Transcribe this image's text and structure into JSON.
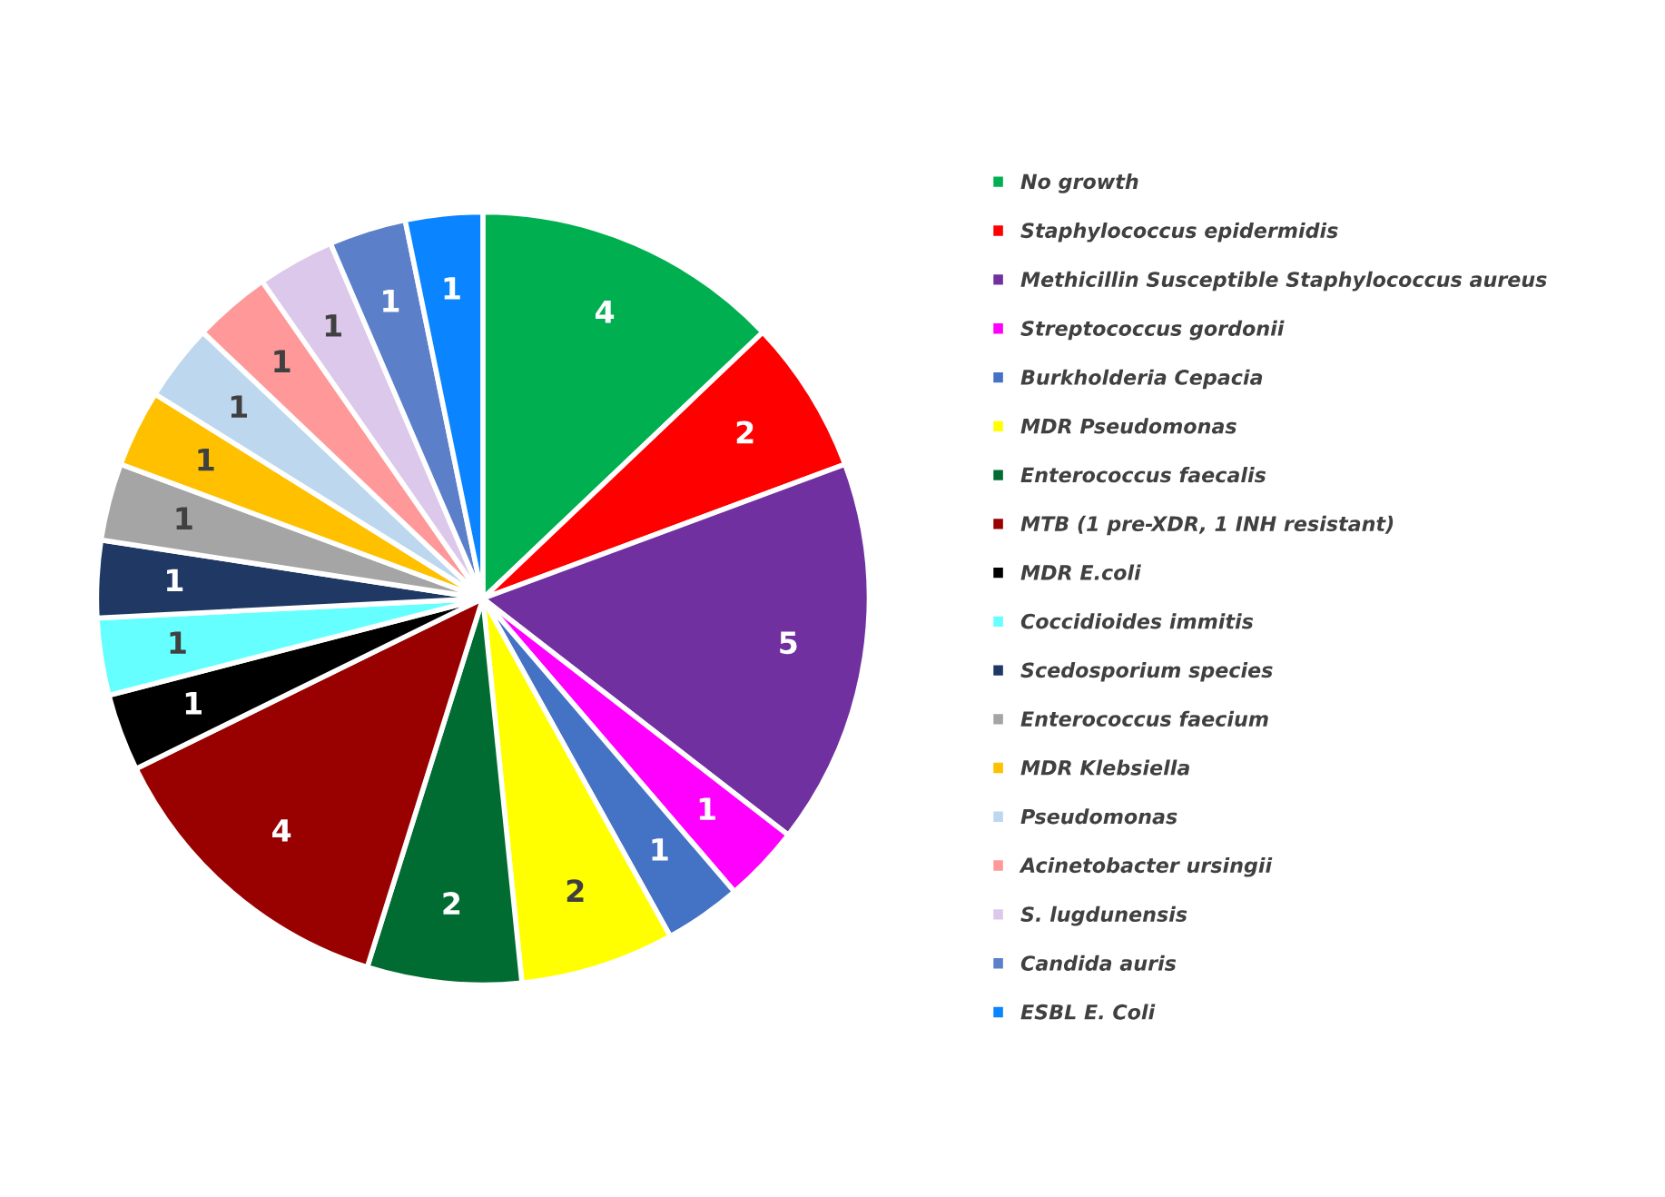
{
  "chart_data": {
    "type": "pie",
    "categories": [
      "No growth",
      "Staphylococcus epidermidis",
      "Methicillin Susceptible Staphylococcus aureus",
      "Streptococcus gordonii",
      "Burkholderia Cepacia",
      "MDR Pseudomonas",
      "Enterococcus faecalis",
      "MTB (1 pre-XDR, 1 INH resistant)",
      "MDR E.coli",
      "Coccidioides immitis",
      "Scedosporium species",
      "Enterococcus faecium",
      "MDR Klebsiella",
      "Pseudomonas",
      "Acinetobacter ursingii",
      "S. lugdunensis",
      "Candida auris",
      "ESBL E. Coli"
    ],
    "values": [
      4,
      2,
      5,
      1,
      1,
      2,
      2,
      4,
      1,
      1,
      1,
      1,
      1,
      1,
      1,
      1,
      1,
      1
    ],
    "colors": [
      "#00b050",
      "#ff0000",
      "#7030a0",
      "#ff00ff",
      "#4472c4",
      "#ffff00",
      "#006c31",
      "#990000",
      "#000000",
      "#66ffff",
      "#203864",
      "#a5a5a5",
      "#ffc000",
      "#bdd7ee",
      "#ff9999",
      "#dcc8ea",
      "#5b7fc9",
      "#0a84ff"
    ],
    "data_labels": true,
    "legend": "right"
  }
}
